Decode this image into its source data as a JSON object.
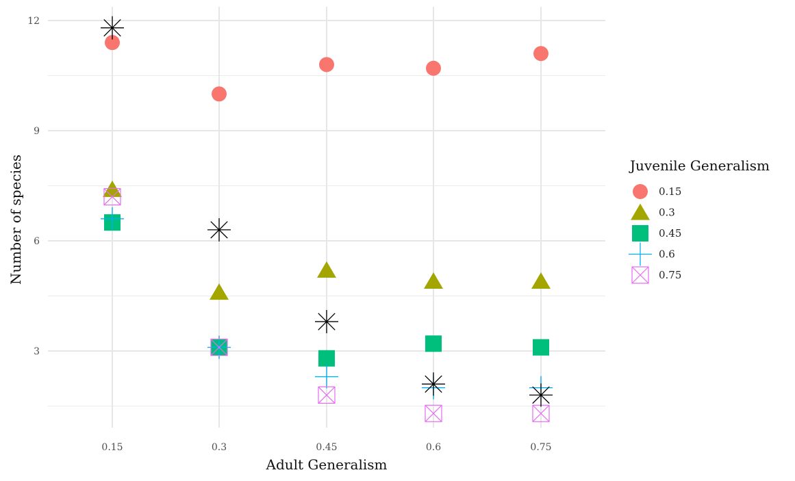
{
  "chart_data": {
    "type": "scatter",
    "title": "",
    "xlabel": "Adult Generalism",
    "ylabel": "Number of species",
    "categories": [
      "0.15",
      "0.3",
      "0.45",
      "0.6",
      "0.75"
    ],
    "ylim": [
      0.7,
      12.4
    ],
    "yticks": [
      3,
      6,
      9,
      12
    ],
    "grid": true,
    "legend": {
      "title": "Juvenile Generalism",
      "position": "right"
    },
    "series": [
      {
        "name": "0.15",
        "shape": "circle",
        "color": "#F8766D",
        "values": [
          11.4,
          10.0,
          10.8,
          10.7,
          11.1
        ]
      },
      {
        "name": "0.3",
        "shape": "triangle",
        "color": "#A3A500",
        "values": [
          7.4,
          4.6,
          5.2,
          4.9,
          4.9
        ]
      },
      {
        "name": "0.45",
        "shape": "square",
        "color": "#00BF7D",
        "values": [
          6.5,
          3.1,
          2.8,
          3.2,
          3.1
        ]
      },
      {
        "name": "0.6",
        "shape": "plus",
        "color": "#00B0F6",
        "values": [
          6.6,
          3.1,
          2.3,
          2.0,
          2.0
        ]
      },
      {
        "name": "0.75",
        "shape": "boxcross",
        "color": "#E76BF3",
        "values": [
          7.2,
          3.1,
          1.8,
          1.3,
          1.3
        ]
      },
      {
        "name": "",
        "shape": "asterisk",
        "color": "#000000",
        "values": [
          11.8,
          6.3,
          3.8,
          2.1,
          1.8
        ]
      }
    ]
  }
}
